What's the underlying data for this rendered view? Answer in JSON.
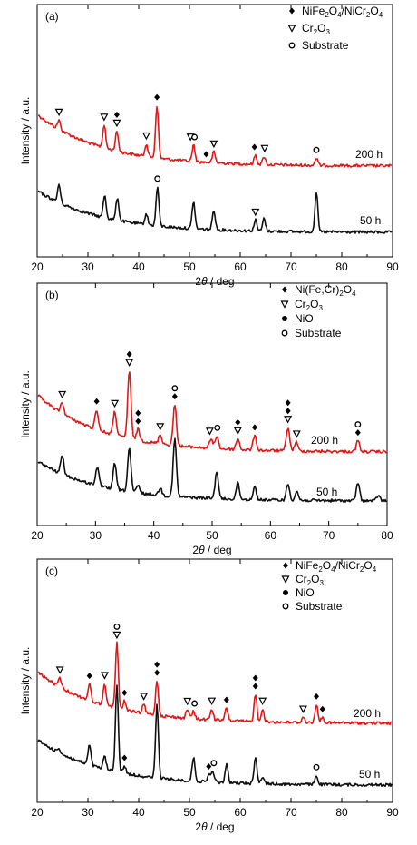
{
  "chart_data": [
    {
      "type": "line",
      "panel_label": "(a)",
      "xlabel_pre": "2",
      "xlabel_theta": "θ",
      "xlabel_post": " / deg",
      "ylabel": "Intensity / a.u.",
      "xlim": [
        20,
        90
      ],
      "xticks": [
        20,
        30,
        40,
        50,
        60,
        70,
        80,
        90
      ],
      "legend": [
        {
          "icon": "diamond",
          "parts": [
            "NiFe",
            "2",
            "O",
            "4",
            "/NiCr",
            "2",
            "O",
            "4"
          ]
        },
        {
          "icon": "triangle",
          "parts": [
            "Cr",
            "2",
            "O",
            "3"
          ]
        },
        {
          "icon": "circle",
          "parts": [
            "Substrate"
          ]
        }
      ],
      "series": [
        {
          "name": "200 h",
          "color": "#e01818",
          "baseline_top": 126,
          "baseline_end": 183,
          "peaks": [
            [
              24.3,
              10
            ],
            [
              33.2,
              25
            ],
            [
              35.7,
              22
            ],
            [
              41.5,
              14
            ],
            [
              43.6,
              58
            ],
            [
              50.8,
              18
            ],
            [
              54.8,
              12
            ],
            [
              63.0,
              10
            ],
            [
              64.7,
              9
            ],
            [
              75.0,
              8
            ]
          ],
          "markers": [
            {
              "x": 24.3,
              "stack": [
                "triangle"
              ]
            },
            {
              "x": 33.2,
              "stack": [
                "triangle"
              ]
            },
            {
              "x": 35.7,
              "stack": [
                "diamond",
                "triangle"
              ]
            },
            {
              "x": 41.5,
              "stack": [
                "triangle"
              ]
            },
            {
              "x": 43.6,
              "stack": [
                "diamond"
              ]
            },
            {
              "x": 50.2,
              "stack": [
                "triangle"
              ]
            },
            {
              "x": 51.0,
              "stack": [
                "circle"
              ]
            },
            {
              "x": 53.3,
              "stack": [
                "diamond"
              ]
            },
            {
              "x": 54.8,
              "stack": [
                "triangle"
              ]
            },
            {
              "x": 62.8,
              "stack": [
                "diamond"
              ]
            },
            {
              "x": 64.8,
              "stack": [
                "triangle"
              ]
            },
            {
              "x": 75.0,
              "stack": [
                "circle"
              ]
            }
          ]
        },
        {
          "name": "50 h",
          "color": "#101010",
          "baseline_top": 210,
          "baseline_end": 256,
          "peaks": [
            [
              24.3,
              20
            ],
            [
              33.3,
              25
            ],
            [
              35.8,
              25
            ],
            [
              41.5,
              12
            ],
            [
              43.7,
              43
            ],
            [
              50.8,
              30
            ],
            [
              54.8,
              22
            ],
            [
              63.0,
              12
            ],
            [
              64.7,
              14
            ],
            [
              75.0,
              44
            ]
          ],
          "markers": [
            {
              "x": 43.7,
              "stack": [
                "circle"
              ]
            },
            {
              "x": 63.0,
              "stack": [
                "triangle"
              ]
            }
          ]
        }
      ]
    },
    {
      "type": "line",
      "panel_label": "(b)",
      "xlabel_pre": "2",
      "xlabel_theta": "θ",
      "xlabel_post": " / deg",
      "ylabel": "Intensity / a.u.",
      "xlim": [
        20,
        80
      ],
      "xticks": [
        20,
        30,
        40,
        50,
        60,
        70,
        80
      ],
      "legend": [
        {
          "icon": "diamond",
          "parts": [
            "Ni(Fe,Cr)",
            "2",
            "O",
            "4"
          ]
        },
        {
          "icon": "triangle",
          "parts": [
            "Cr",
            "2",
            "O",
            "3"
          ]
        },
        {
          "icon": "circle-black",
          "parts": [
            "NiO"
          ]
        },
        {
          "icon": "circle",
          "parts": [
            "Substrate"
          ]
        }
      ],
      "series": [
        {
          "name": "200 h",
          "color": "#e01818",
          "baseline_top": 435,
          "baseline_end": 498,
          "peaks": [
            [
              24.3,
              12
            ],
            [
              30.2,
              22
            ],
            [
              33.3,
              26
            ],
            [
              35.8,
              75
            ],
            [
              37.3,
              12
            ],
            [
              41.1,
              10
            ],
            [
              43.6,
              45
            ],
            [
              49.8,
              10
            ],
            [
              50.8,
              14
            ],
            [
              54.4,
              12
            ],
            [
              57.3,
              16
            ],
            [
              63.0,
              26
            ],
            [
              64.4,
              10
            ],
            [
              75.0,
              12
            ]
          ],
          "markers": [
            {
              "x": 24.3,
              "stack": [
                "triangle"
              ]
            },
            {
              "x": 30.2,
              "stack": [
                "diamond"
              ]
            },
            {
              "x": 33.3,
              "stack": [
                "triangle"
              ]
            },
            {
              "x": 35.8,
              "stack": [
                "diamond",
                "triangle"
              ]
            },
            {
              "x": 37.3,
              "stack": [
                "diamond",
                "diamond"
              ]
            },
            {
              "x": 41.1,
              "stack": [
                "triangle"
              ]
            },
            {
              "x": 43.6,
              "stack": [
                "circle",
                "diamond"
              ]
            },
            {
              "x": 49.6,
              "stack": [
                "triangle"
              ]
            },
            {
              "x": 50.9,
              "stack": [
                "circle"
              ]
            },
            {
              "x": 54.4,
              "stack": [
                "diamond",
                "triangle"
              ]
            },
            {
              "x": 57.3,
              "stack": [
                "diamond"
              ]
            },
            {
              "x": 63.0,
              "stack": [
                "diamond",
                "diamond",
                "triangle"
              ]
            },
            {
              "x": 64.5,
              "stack": [
                "triangle"
              ]
            },
            {
              "x": 75.0,
              "stack": [
                "circle",
                "diamond"
              ]
            }
          ]
        },
        {
          "name": "50 h",
          "color": "#101010",
          "baseline_top": 508,
          "baseline_end": 552,
          "peaks": [
            [
              24.3,
              20
            ],
            [
              30.3,
              20
            ],
            [
              33.3,
              28
            ],
            [
              35.8,
              48
            ],
            [
              37.3,
              8
            ],
            [
              41.1,
              8
            ],
            [
              43.6,
              63
            ],
            [
              50.8,
              30
            ],
            [
              54.4,
              18
            ],
            [
              57.3,
              14
            ],
            [
              63.0,
              18
            ],
            [
              64.5,
              10
            ],
            [
              75.0,
              20
            ],
            [
              78.5,
              6
            ]
          ],
          "markers": []
        }
      ]
    },
    {
      "type": "line",
      "panel_label": "(c)",
      "xlabel_pre": "2",
      "xlabel_theta": "θ",
      "xlabel_post": " / deg",
      "ylabel": "Intensity / a.u.",
      "xlim": [
        20,
        90
      ],
      "xticks": [
        20,
        30,
        40,
        50,
        60,
        70,
        80,
        90
      ],
      "legend": [
        {
          "icon": "diamond",
          "parts": [
            "NiFe",
            "2",
            "O",
            "4",
            "/NiCr",
            "2",
            "O",
            "4"
          ]
        },
        {
          "icon": "triangle",
          "parts": [
            "Cr",
            "2",
            "O",
            "3"
          ]
        },
        {
          "icon": "circle-black",
          "parts": [
            "NiO"
          ]
        },
        {
          "icon": "circle",
          "parts": [
            "Substrate"
          ]
        }
      ],
      "series": [
        {
          "name": "200 h",
          "color": "#e01818",
          "baseline_top": 740,
          "baseline_end": 797,
          "peaks": [
            [
              24.5,
              10
            ],
            [
              30.3,
              18
            ],
            [
              33.3,
              24
            ],
            [
              35.7,
              72
            ],
            [
              37.2,
              10
            ],
            [
              41.0,
              10
            ],
            [
              43.6,
              38
            ],
            [
              49.6,
              10
            ],
            [
              50.8,
              8
            ],
            [
              54.4,
              12
            ],
            [
              57.3,
              14
            ],
            [
              63.0,
              30
            ],
            [
              64.4,
              14
            ],
            [
              72.4,
              6
            ],
            [
              75.0,
              20
            ],
            [
              76.2,
              6
            ]
          ],
          "markers": [
            {
              "x": 24.5,
              "stack": [
                "triangle"
              ]
            },
            {
              "x": 30.3,
              "stack": [
                "diamond"
              ]
            },
            {
              "x": 33.3,
              "stack": [
                "triangle"
              ]
            },
            {
              "x": 35.7,
              "stack": [
                "circle",
                "triangle"
              ]
            },
            {
              "x": 37.2,
              "stack": [
                "diamond"
              ]
            },
            {
              "x": 41.0,
              "stack": [
                "triangle"
              ]
            },
            {
              "x": 43.6,
              "stack": [
                "diamond",
                "diamond"
              ]
            },
            {
              "x": 49.6,
              "stack": [
                "triangle"
              ]
            },
            {
              "x": 51.0,
              "stack": [
                "circle"
              ]
            },
            {
              "x": 54.4,
              "stack": [
                "triangle"
              ]
            },
            {
              "x": 57.3,
              "stack": [
                "diamond"
              ]
            },
            {
              "x": 63.0,
              "stack": [
                "diamond",
                "diamond"
              ]
            },
            {
              "x": 64.4,
              "stack": [
                "triangle"
              ]
            },
            {
              "x": 72.4,
              "stack": [
                "triangle"
              ]
            },
            {
              "x": 75.0,
              "stack": [
                "diamond"
              ]
            },
            {
              "x": 76.2,
              "stack": [
                "diamond"
              ]
            }
          ]
        },
        {
          "name": "50 h",
          "color": "#101010",
          "baseline_top": 815,
          "baseline_end": 865,
          "peaks": [
            [
              24.3,
              5
            ],
            [
              30.3,
              22
            ],
            [
              33.3,
              14
            ],
            [
              35.7,
              97
            ],
            [
              37.2,
              8
            ],
            [
              43.6,
              80
            ],
            [
              50.8,
              26
            ],
            [
              53.8,
              8
            ],
            [
              54.6,
              12
            ],
            [
              57.3,
              20
            ],
            [
              63.0,
              30
            ],
            [
              64.4,
              8
            ],
            [
              75.0,
              10
            ]
          ],
          "markers": [
            {
              "x": 37.2,
              "stack": [
                "diamond"
              ]
            },
            {
              "x": 53.8,
              "stack": [
                "diamond"
              ]
            },
            {
              "x": 54.8,
              "stack": [
                "circle"
              ]
            },
            {
              "x": 75.0,
              "stack": [
                "circle"
              ]
            }
          ]
        }
      ]
    }
  ]
}
